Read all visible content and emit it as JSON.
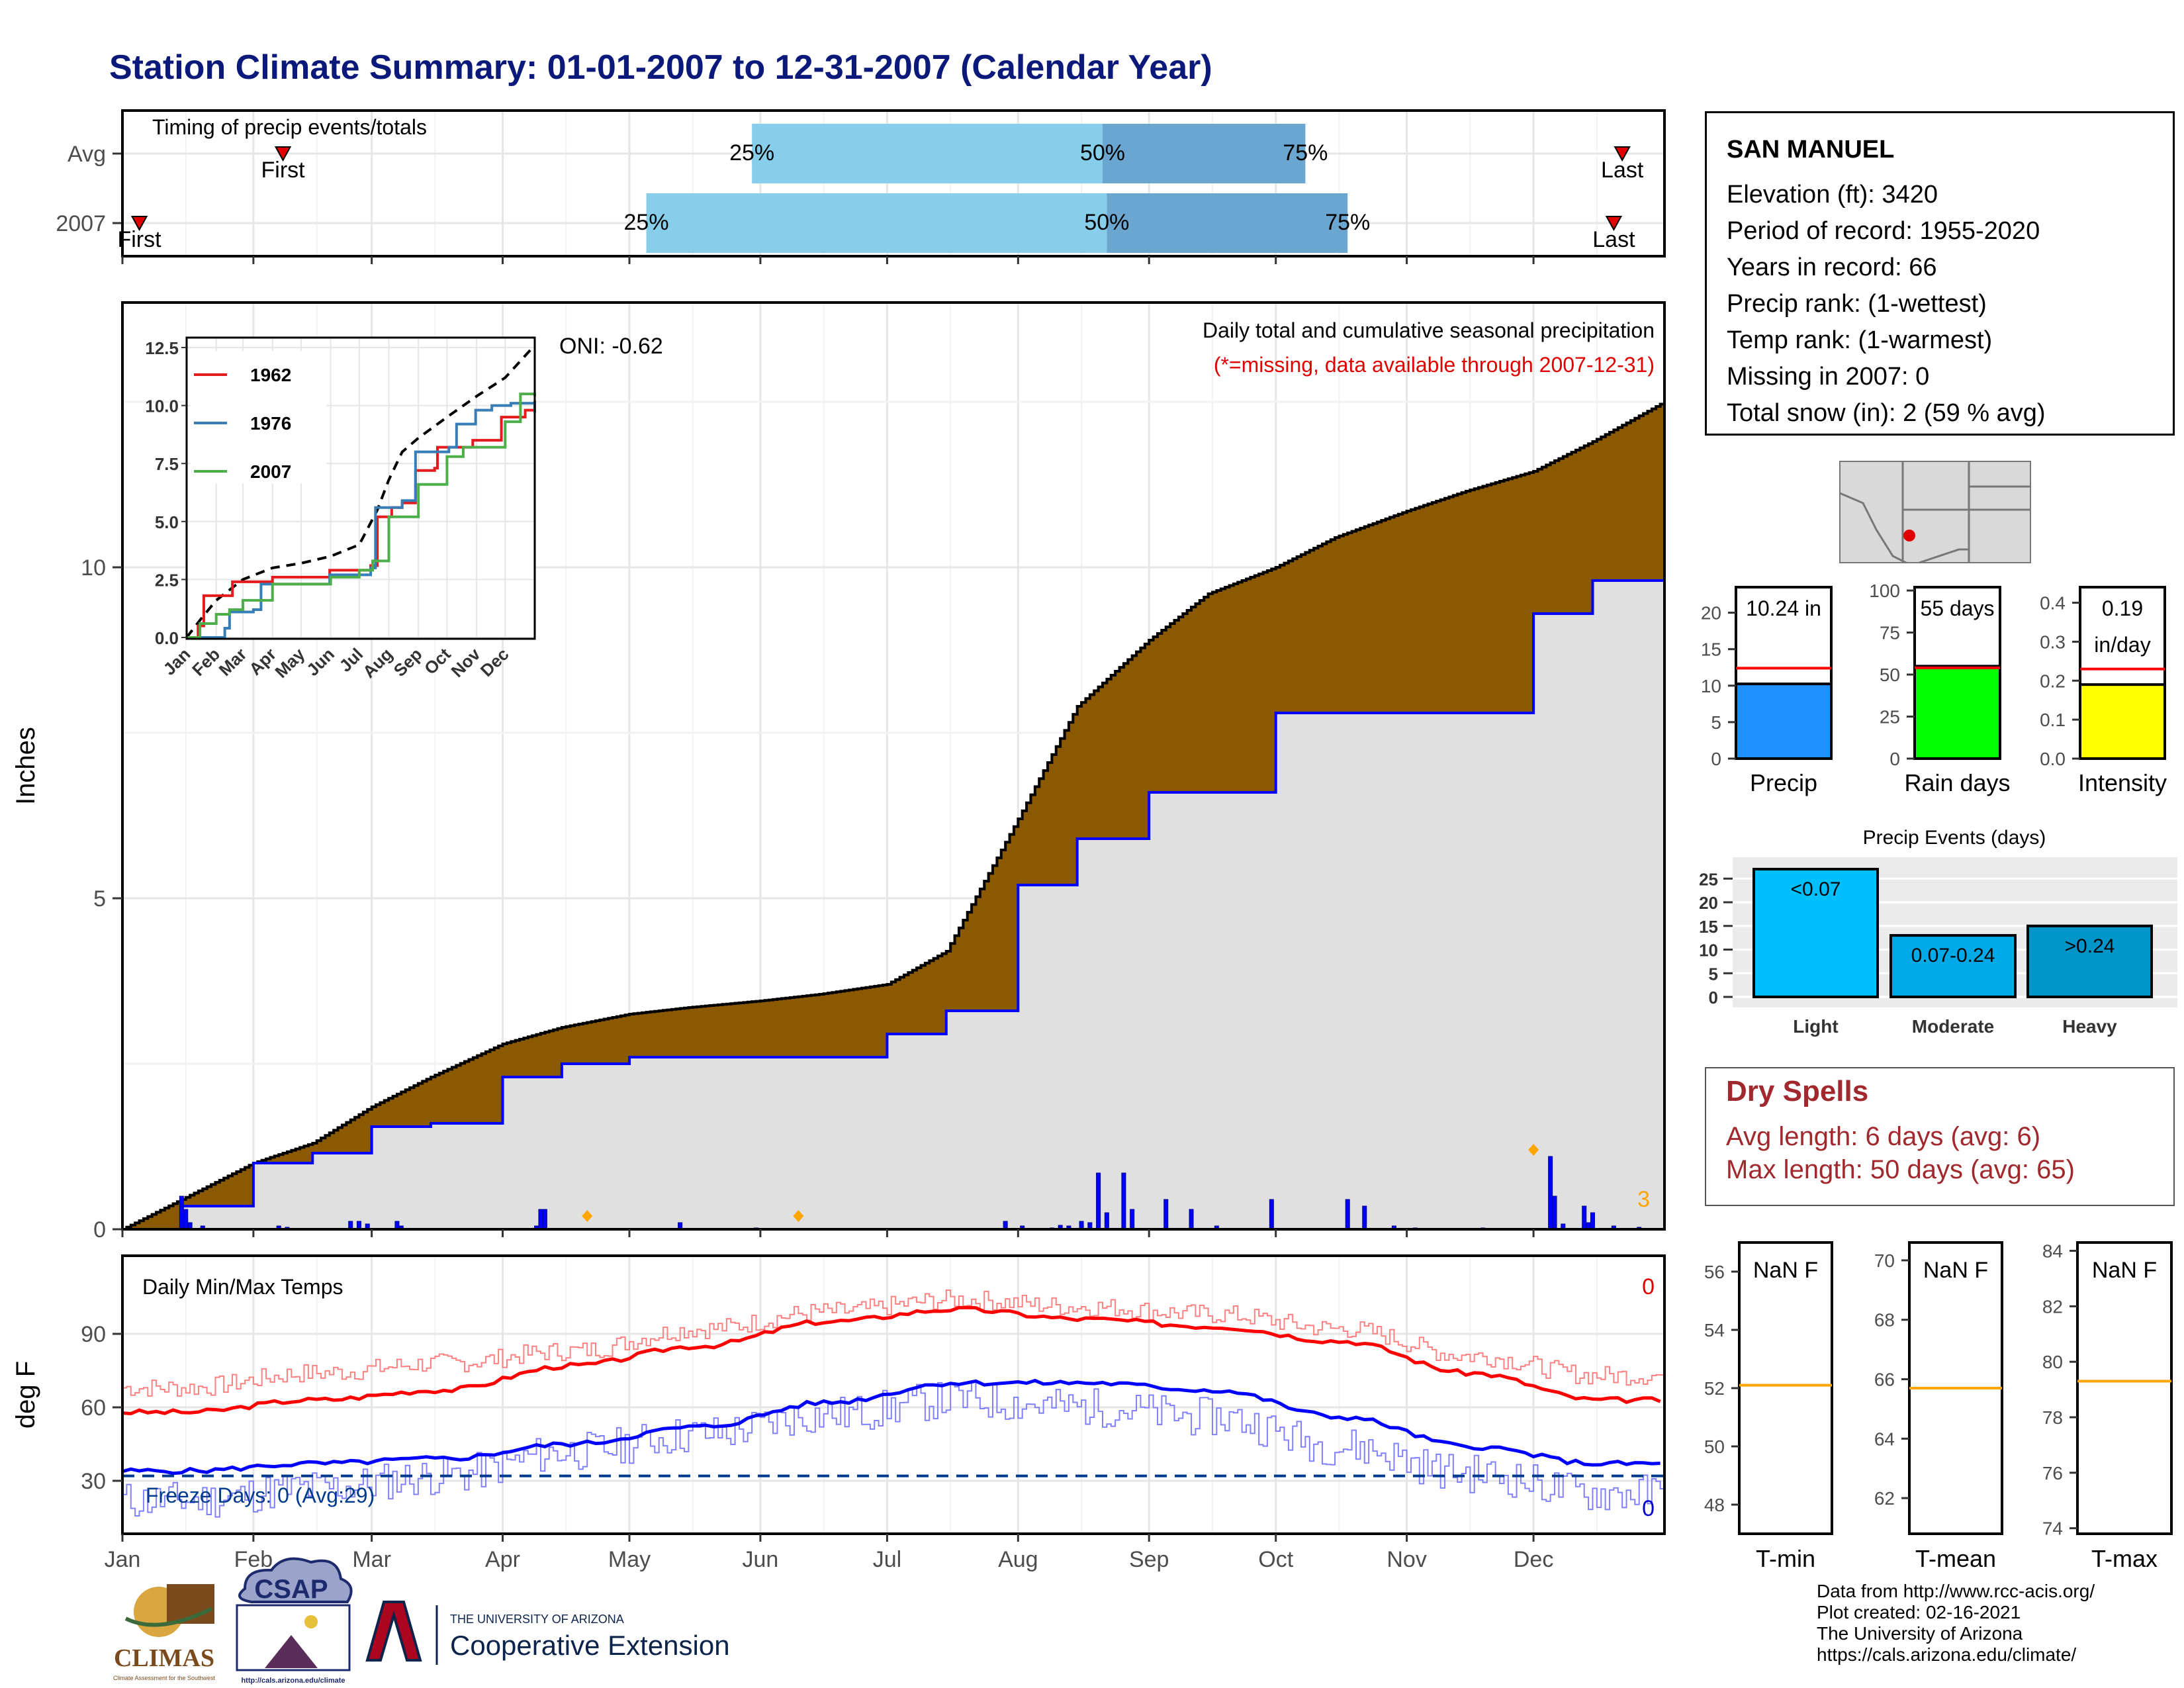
{
  "title": "Station Climate Summary: 01-01-2007 to 12-31-2007 (Calendar Year)",
  "timing": {
    "label": "Timing of precip events/totals",
    "rows": [
      {
        "name": "Avg",
        "first_day": 38,
        "q25": 149,
        "q50": 232,
        "q75": 280,
        "last_day": 355
      },
      {
        "name": "2007",
        "first_day": 4,
        "q25": 124,
        "q50": 233,
        "q75": 290,
        "last_day": 353
      }
    ],
    "first_label": "First",
    "last_label": "Last",
    "q25_label": "25%",
    "q50_label": "50%",
    "q75_label": "75%"
  },
  "precip_panel": {
    "ylabel": "Inches",
    "yticks": [
      0,
      5,
      10
    ],
    "legend_title": "Daily total and cumulative seasonal precipitation",
    "missing_note": "(*=missing, data available through 2007-12-31)",
    "oni": "ONI: -0.62",
    "missing_count": "3",
    "colors": {
      "avg_fill": "#8b5a00",
      "obs_fill": "#e0e0e0",
      "obs_line": "#0000ff",
      "missing": "#ffa500",
      "daily_bar": "#0000ff"
    }
  },
  "month_labels": [
    "Jan",
    "Feb",
    "Mar",
    "Apr",
    "May",
    "Jun",
    "Jul",
    "Aug",
    "Sep",
    "Oct",
    "Nov",
    "Dec"
  ],
  "inset": {
    "yticks": [
      "0.0",
      "2.5",
      "5.0",
      "7.5",
      "10.0",
      "12.5"
    ],
    "series": [
      {
        "name": "1962",
        "color": "#e41a1c"
      },
      {
        "name": "1976",
        "color": "#377eb8"
      },
      {
        "name": "2007",
        "color": "#4daf4a"
      }
    ]
  },
  "station": {
    "name": "SAN MANUEL",
    "lines": [
      "Elevation (ft): 3420",
      "Period of record: 1955-2020",
      "Years in record: 66",
      "Precip rank:  (1-wettest)",
      "Temp rank:  (1-warmest)",
      "Missing in 2007: 0",
      "Total snow (in): 2 (59 % avg)"
    ]
  },
  "mini_bars": [
    {
      "label": "Precip",
      "top_text": "10.24 in",
      "top_text2": "",
      "value": 10.24,
      "avg": 12.4,
      "ymax": 23.5,
      "ticks": [
        "0",
        "5",
        "10",
        "15",
        "20"
      ],
      "tickvals": [
        0,
        5,
        10,
        15,
        20
      ],
      "color": "#1e90ff"
    },
    {
      "label": "Rain days",
      "top_text": "55 days",
      "top_text2": "",
      "value": 55,
      "avg": 54,
      "ymax": 102,
      "ticks": [
        "0",
        "25",
        "50",
        "75",
        "100"
      ],
      "tickvals": [
        0,
        25,
        50,
        75,
        100
      ],
      "color": "#00ff00"
    },
    {
      "label": "Intensity",
      "top_text": "0.19",
      "top_text2": "in/day",
      "value": 0.19,
      "avg": 0.23,
      "ymax": 0.44,
      "ticks": [
        "0.0",
        "0.1",
        "0.2",
        "0.3",
        "0.4"
      ],
      "tickvals": [
        0,
        0.1,
        0.2,
        0.3,
        0.4
      ],
      "color": "#ffff00"
    }
  ],
  "events": {
    "title": "Precip Events (days)",
    "yticks": [
      "0",
      "5",
      "10",
      "15",
      "20",
      "25"
    ],
    "bars": [
      {
        "label": "Light",
        "value": 27,
        "text": "<0.07",
        "color": "#00bfff"
      },
      {
        "label": "Moderate",
        "value": 13,
        "text": "0.07-0.24",
        "color": "#00a9e8"
      },
      {
        "label": "Heavy",
        "value": 15,
        "text": ">0.24",
        "color": "#0095c8"
      }
    ]
  },
  "dry_spells": {
    "title": "Dry Spells",
    "avg": "Avg length: 6 days (avg: 6)",
    "max": "Max length: 50 days (avg: 65)"
  },
  "temp_panel": {
    "ylabel": "deg F",
    "label": "Daily Min/Max Temps",
    "yticks": [
      30,
      60,
      90
    ],
    "freeze": "Freeze Days: 0 (Avg:29)",
    "max_count": "0",
    "min_count": "0",
    "colors": {
      "max": "#ff0000",
      "min": "#0000ff",
      "freeze": "#003a8c"
    }
  },
  "temp_boxes": [
    {
      "label": "T-min",
      "text": "NaN F",
      "ticks": [
        "48",
        "50",
        "52",
        "54",
        "56"
      ],
      "lo": 47,
      "hi": 57,
      "avg": 52.1
    },
    {
      "label": "T-mean",
      "text": "NaN F",
      "ticks": [
        "62",
        "64",
        "66",
        "68",
        "70"
      ],
      "lo": 60.8,
      "hi": 70.6,
      "avg": 65.7
    },
    {
      "label": "T-max",
      "text": "NaN F",
      "ticks": [
        "74",
        "76",
        "78",
        "80",
        "82",
        "84"
      ],
      "lo": 73.8,
      "hi": 84.3,
      "avg": 79.3
    }
  ],
  "credits": [
    "Data from http://www.rcc-acis.org/",
    "Plot created: 02-16-2021",
    "The University of Arizona",
    "https://cals.arizona.edu/climate/"
  ],
  "logos": {
    "climas": "CLIMAS",
    "climas_sub": "Climate Assessment for the Southwest",
    "csap": "CSAP",
    "csap_url": "http://cals.arizona.edu/climate",
    "ua_small": "THE UNIVERSITY OF ARIZONA",
    "ua_big": "Cooperative Extension"
  },
  "chart_data": [
    {
      "type": "bar",
      "title": "Timing of precip events/totals",
      "categories": [
        "Avg",
        "2007"
      ],
      "series": [
        {
          "name": "25%",
          "values": [
            149,
            124
          ]
        },
        {
          "name": "50%",
          "values": [
            232,
            233
          ]
        },
        {
          "name": "75%",
          "values": [
            280,
            290
          ]
        }
      ]
    },
    {
      "type": "area",
      "title": "Daily total and cumulative seasonal precipitation",
      "ylabel": "Inches",
      "ylim": [
        0,
        12.5
      ],
      "x": [
        "Jan 1",
        "Jan 15",
        "Feb 1",
        "Feb 15",
        "Mar 1",
        "Mar 15",
        "Apr 1",
        "Apr 15",
        "May 1",
        "May 15",
        "Jun 1",
        "Jun 15",
        "Jul 1",
        "Jul 15",
        "Aug 1",
        "Aug 15",
        "Sep 1",
        "Sep 15",
        "Oct 1",
        "Oct 15",
        "Nov 1",
        "Nov 15",
        "Dec 1",
        "Dec 15",
        "Dec 31"
      ],
      "series": [
        {
          "name": "Avg cumulative",
          "values": [
            0,
            0.45,
            1.0,
            1.3,
            1.85,
            2.3,
            2.8,
            3.05,
            3.25,
            3.35,
            3.45,
            3.55,
            3.7,
            4.2,
            6.2,
            7.9,
            8.9,
            9.6,
            10.0,
            10.45,
            10.85,
            11.15,
            11.45,
            11.9,
            12.5
          ]
        },
        {
          "name": "2007 cumulative",
          "values": [
            0,
            0.35,
            1.0,
            1.15,
            1.55,
            1.6,
            2.3,
            2.5,
            2.6,
            2.6,
            2.6,
            2.6,
            2.95,
            3.3,
            5.2,
            5.9,
            6.6,
            6.6,
            7.8,
            7.8,
            7.8,
            7.8,
            9.3,
            9.8,
            10.24
          ]
        }
      ]
    },
    {
      "type": "line",
      "title": "Daily Min/Max Temps",
      "ylabel": "deg F",
      "x": [
        "Jan",
        "Feb",
        "Mar",
        "Apr",
        "May",
        "Jun",
        "Jul",
        "Aug",
        "Sep",
        "Oct",
        "Nov",
        "Dec"
      ],
      "series": [
        {
          "name": "Avg max",
          "values": [
            58,
            63,
            67,
            77,
            85,
            95,
            100,
            96,
            93,
            87,
            74,
            63
          ]
        },
        {
          "name": "Avg min",
          "values": [
            34,
            37,
            39,
            45,
            52,
            62,
            70,
            70,
            67,
            56,
            44,
            37
          ]
        },
        {
          "name": "2007 max",
          "values": [
            68,
            74,
            78,
            83,
            92,
            99,
            104,
            101,
            98,
            92,
            81,
            73
          ]
        },
        {
          "name": "2007 min",
          "values": [
            22,
            27,
            32,
            42,
            49,
            57,
            63,
            60,
            56,
            44,
            33,
            25
          ]
        }
      ]
    }
  ]
}
